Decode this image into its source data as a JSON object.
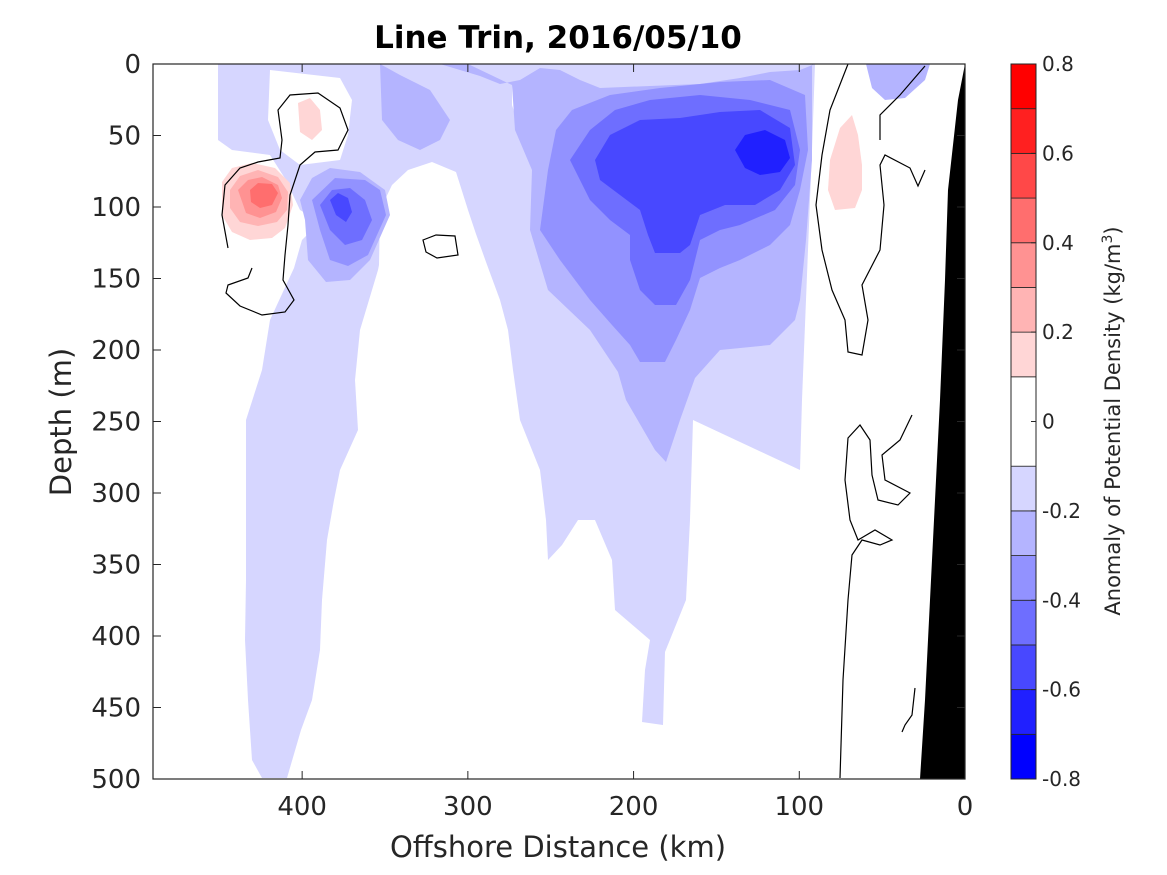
{
  "chart_data": {
    "type": "heatmap",
    "title": "Line Trin, 2016/05/10",
    "xlabel": "Offshore Distance (km)",
    "ylabel": "Depth (m)",
    "xlim": [
      490,
      0
    ],
    "ylim": [
      0,
      500
    ],
    "x_ticks": [
      "400",
      "300",
      "200",
      "100",
      "0"
    ],
    "x_tick_values": [
      400,
      300,
      200,
      100,
      0
    ],
    "y_ticks": [
      "0",
      "50",
      "100",
      "150",
      "200",
      "250",
      "300",
      "350",
      "400",
      "450",
      "500"
    ],
    "y_tick_values": [
      0,
      50,
      100,
      150,
      200,
      250,
      300,
      350,
      400,
      450,
      500
    ],
    "colorbar": {
      "label_prefix": "Anomaly of Potential Density (kg/m",
      "label_sup": "3",
      "label_suffix": ")",
      "range": [
        -0.8,
        0.8
      ],
      "ticks": [
        "0.8",
        "0.6",
        "0.4",
        "0.2",
        "0",
        "-0.2",
        "-0.4",
        "-0.6",
        "-0.8"
      ],
      "tick_values": [
        0.8,
        0.6,
        0.4,
        0.2,
        0,
        -0.2,
        -0.4,
        -0.6,
        -0.8
      ],
      "levels": [
        -0.8,
        -0.7,
        -0.6,
        -0.5,
        -0.4,
        -0.3,
        -0.2,
        -0.1,
        0.1,
        0.2,
        0.3,
        0.4,
        0.5,
        0.6,
        0.7,
        0.8
      ],
      "colors": [
        "#0000ff",
        "#2020ff",
        "#4848ff",
        "#6e6eff",
        "#9292ff",
        "#b4b4ff",
        "#d6d6ff",
        "#ffffff",
        "#ffd6d6",
        "#ffb4b4",
        "#ff9292",
        "#ff6e6e",
        "#ff4848",
        "#ff2020",
        "#ff0000"
      ]
    },
    "features": [
      {
        "name": "positive anomaly core",
        "distance_km": 420,
        "depth_m": 85,
        "value": 0.5
      },
      {
        "name": "positive patch",
        "distance_km": 410,
        "depth_m": 35,
        "value": 0.2
      },
      {
        "name": "positive patch nearshore",
        "distance_km": 70,
        "depth_m": 85,
        "value": 0.2
      },
      {
        "name": "negative anomaly core",
        "distance_km": 115,
        "depth_m": 60,
        "value": -0.7
      },
      {
        "name": "negative anomaly",
        "distance_km": 175,
        "depth_m": 100,
        "value": -0.5
      },
      {
        "name": "negative patch",
        "distance_km": 380,
        "depth_m": 100,
        "value": -0.5
      }
    ],
    "grid": false,
    "colorbar_position": "right",
    "bathymetry_color": "#000000"
  }
}
